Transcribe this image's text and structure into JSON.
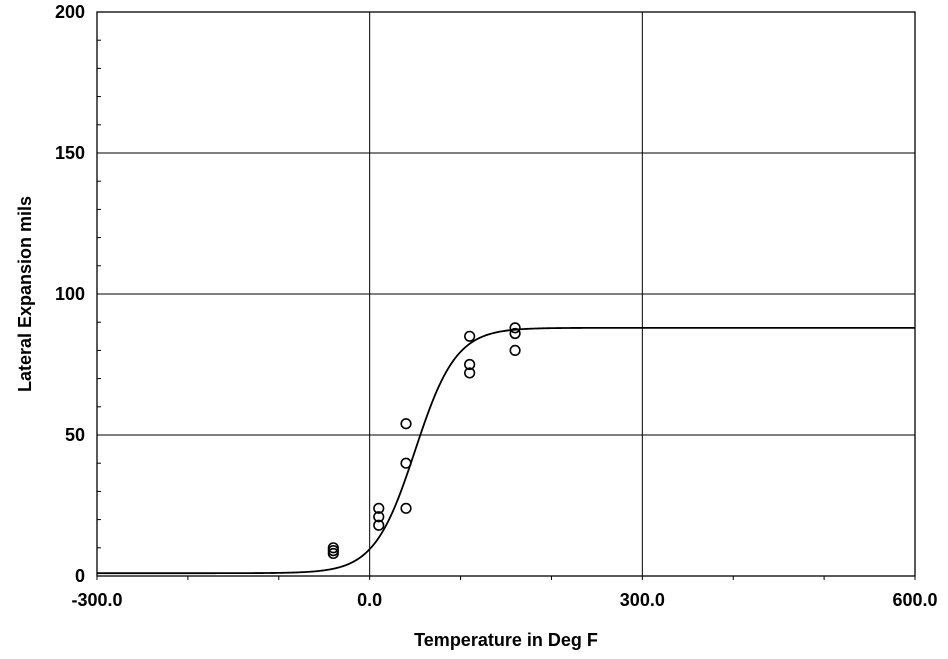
{
  "chart_data": {
    "type": "scatter",
    "xlabel": "Temperature in Deg F",
    "ylabel": "Lateral Expansion mils",
    "xlim": [
      -300,
      600
    ],
    "ylim": [
      0,
      200
    ],
    "x_tick_labels": [
      {
        "value": -300,
        "label": "-300.0"
      },
      {
        "value": 0,
        "label": "0.0"
      },
      {
        "value": 300,
        "label": "300.0"
      },
      {
        "value": 600,
        "label": "600.0"
      }
    ],
    "y_tick_labels": [
      {
        "value": 0,
        "label": "0"
      },
      {
        "value": 50,
        "label": "50"
      },
      {
        "value": 100,
        "label": "100"
      },
      {
        "value": 150,
        "label": "150"
      },
      {
        "value": 200,
        "label": "200"
      }
    ],
    "grid": true,
    "grid_x": [
      0,
      300
    ],
    "grid_y": [
      50,
      100,
      150
    ],
    "points": [
      {
        "x": -40,
        "y": 8
      },
      {
        "x": -40,
        "y": 9
      },
      {
        "x": -40,
        "y": 10
      },
      {
        "x": 10,
        "y": 18
      },
      {
        "x": 10,
        "y": 21
      },
      {
        "x": 10,
        "y": 24
      },
      {
        "x": 40,
        "y": 24
      },
      {
        "x": 40,
        "y": 40
      },
      {
        "x": 40,
        "y": 54
      },
      {
        "x": 110,
        "y": 72
      },
      {
        "x": 110,
        "y": 75
      },
      {
        "x": 110,
        "y": 85
      },
      {
        "x": 160,
        "y": 80
      },
      {
        "x": 160,
        "y": 86
      },
      {
        "x": 160,
        "y": 88
      }
    ],
    "fit_curve": {
      "type": "tanh",
      "lower_shelf": 1,
      "upper_shelf": 88,
      "midpoint_temp": 50,
      "width": 45
    }
  }
}
